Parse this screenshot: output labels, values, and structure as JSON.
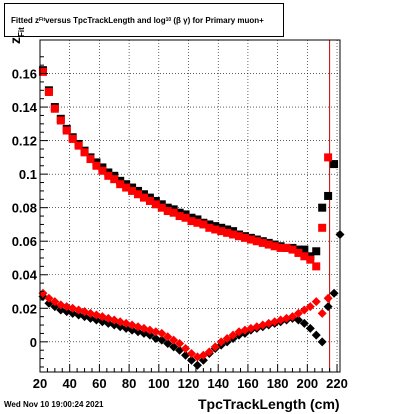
{
  "title": {
    "prefix": "Fitted z",
    "sub1": "Fit",
    "mid": " versus TpcTrackLength and log",
    "sub2": "10",
    "suffix": "(β γ) for Primary muon+"
  },
  "footer_text": "Wed Nov 10 19:00:24 2021",
  "chart_data": {
    "type": "scatter",
    "xlabel": "TpcTrackLength (cm)",
    "ylabel_main": "z",
    "ylabel_sub": "Fit",
    "xlim": [
      20,
      222
    ],
    "ylim": [
      -0.018,
      0.18
    ],
    "xticks": [
      20,
      40,
      60,
      80,
      100,
      120,
      140,
      160,
      180,
      200,
      220
    ],
    "yticks": [
      0,
      0.02,
      0.04,
      0.06,
      0.08,
      0.1,
      0.12,
      0.14,
      0.16
    ],
    "ytick_labels": [
      "0",
      "0.02",
      "0.04",
      "0.06",
      "0.08",
      "0.1",
      "0.12",
      "0.14",
      "0.16"
    ],
    "grid": true,
    "vertical_line_x": 215,
    "series": [
      {
        "color": "#000000",
        "marker": "square",
        "points": [
          [
            22,
            0.162
          ],
          [
            26,
            0.15
          ],
          [
            30,
            0.14
          ],
          [
            34,
            0.133
          ],
          [
            38,
            0.127
          ],
          [
            42,
            0.122
          ],
          [
            46,
            0.118
          ],
          [
            50,
            0.114
          ],
          [
            54,
            0.11
          ],
          [
            58,
            0.107
          ],
          [
            62,
            0.104
          ],
          [
            66,
            0.101
          ],
          [
            70,
            0.099
          ],
          [
            74,
            0.096
          ],
          [
            78,
            0.094
          ],
          [
            82,
            0.092
          ],
          [
            86,
            0.09
          ],
          [
            90,
            0.088
          ],
          [
            94,
            0.086
          ],
          [
            98,
            0.084
          ],
          [
            102,
            0.082
          ],
          [
            106,
            0.08
          ],
          [
            110,
            0.079
          ],
          [
            114,
            0.077
          ],
          [
            118,
            0.076
          ],
          [
            122,
            0.074
          ],
          [
            126,
            0.073
          ],
          [
            130,
            0.071
          ],
          [
            134,
            0.07
          ],
          [
            138,
            0.069
          ],
          [
            142,
            0.068
          ],
          [
            146,
            0.067
          ],
          [
            150,
            0.066
          ],
          [
            154,
            0.064
          ],
          [
            158,
            0.063
          ],
          [
            162,
            0.062
          ],
          [
            166,
            0.061
          ],
          [
            170,
            0.06
          ],
          [
            174,
            0.059
          ],
          [
            178,
            0.058
          ],
          [
            182,
            0.057
          ],
          [
            186,
            0.056
          ],
          [
            190,
            0.056
          ],
          [
            194,
            0.055
          ],
          [
            198,
            0.055
          ],
          [
            202,
            0.051
          ],
          [
            206,
            0.054
          ],
          [
            210,
            0.08
          ],
          [
            214,
            0.087
          ],
          [
            218,
            0.106
          ]
        ]
      },
      {
        "color": "#ff0000",
        "marker": "square",
        "points": [
          [
            22,
            0.161
          ],
          [
            26,
            0.149
          ],
          [
            30,
            0.139
          ],
          [
            34,
            0.132
          ],
          [
            38,
            0.126
          ],
          [
            42,
            0.121
          ],
          [
            46,
            0.117
          ],
          [
            50,
            0.113
          ],
          [
            54,
            0.109
          ],
          [
            58,
            0.105
          ],
          [
            62,
            0.102
          ],
          [
            66,
            0.099
          ],
          [
            70,
            0.097
          ],
          [
            74,
            0.094
          ],
          [
            78,
            0.092
          ],
          [
            82,
            0.09
          ],
          [
            86,
            0.088
          ],
          [
            90,
            0.086
          ],
          [
            94,
            0.084
          ],
          [
            98,
            0.082
          ],
          [
            102,
            0.08
          ],
          [
            106,
            0.078
          ],
          [
            110,
            0.077
          ],
          [
            114,
            0.075
          ],
          [
            118,
            0.074
          ],
          [
            122,
            0.072
          ],
          [
            126,
            0.071
          ],
          [
            130,
            0.07
          ],
          [
            134,
            0.068
          ],
          [
            138,
            0.067
          ],
          [
            142,
            0.066
          ],
          [
            146,
            0.065
          ],
          [
            150,
            0.064
          ],
          [
            154,
            0.063
          ],
          [
            158,
            0.062
          ],
          [
            162,
            0.061
          ],
          [
            166,
            0.06
          ],
          [
            170,
            0.059
          ],
          [
            174,
            0.058
          ],
          [
            178,
            0.057
          ],
          [
            182,
            0.056
          ],
          [
            186,
            0.056
          ],
          [
            190,
            0.055
          ],
          [
            194,
            0.053
          ],
          [
            198,
            0.051
          ],
          [
            202,
            0.049
          ],
          [
            206,
            0.045
          ],
          [
            210,
            0.068
          ],
          [
            214,
            0.11
          ]
        ]
      },
      {
        "color": "#000000",
        "marker": "diamond",
        "points": [
          [
            22,
            0.027
          ],
          [
            26,
            0.023
          ],
          [
            30,
            0.021
          ],
          [
            34,
            0.019
          ],
          [
            38,
            0.018
          ],
          [
            42,
            0.017
          ],
          [
            46,
            0.016
          ],
          [
            50,
            0.015
          ],
          [
            54,
            0.014
          ],
          [
            58,
            0.013
          ],
          [
            62,
            0.012
          ],
          [
            66,
            0.011
          ],
          [
            70,
            0.01
          ],
          [
            74,
            0.009
          ],
          [
            78,
            0.008
          ],
          [
            82,
            0.007
          ],
          [
            86,
            0.006
          ],
          [
            90,
            0.005
          ],
          [
            94,
            0.004
          ],
          [
            98,
            0.002
          ],
          [
            102,
            0.001
          ],
          [
            106,
            -0.001
          ],
          [
            110,
            -0.003
          ],
          [
            114,
            -0.005
          ],
          [
            118,
            -0.008
          ],
          [
            122,
            -0.011
          ],
          [
            126,
            -0.014
          ],
          [
            130,
            -0.011
          ],
          [
            134,
            -0.007
          ],
          [
            138,
            -0.004
          ],
          [
            142,
            -0.002
          ],
          [
            146,
            0.0
          ],
          [
            150,
            0.002
          ],
          [
            154,
            0.004
          ],
          [
            158,
            0.005
          ],
          [
            162,
            0.007
          ],
          [
            166,
            0.008
          ],
          [
            170,
            0.009
          ],
          [
            174,
            0.01
          ],
          [
            178,
            0.011
          ],
          [
            182,
            0.012
          ],
          [
            186,
            0.013
          ],
          [
            190,
            0.014
          ],
          [
            194,
            0.013
          ],
          [
            198,
            0.011
          ],
          [
            202,
            0.008
          ],
          [
            206,
            0.004
          ],
          [
            210,
            0.0
          ],
          [
            214,
            0.021
          ],
          [
            218,
            0.029
          ],
          [
            222,
            0.064
          ]
        ]
      },
      {
        "color": "#ff0000",
        "marker": "diamond",
        "points": [
          [
            22,
            0.029
          ],
          [
            26,
            0.026
          ],
          [
            30,
            0.024
          ],
          [
            34,
            0.022
          ],
          [
            38,
            0.021
          ],
          [
            42,
            0.02
          ],
          [
            46,
            0.019
          ],
          [
            50,
            0.018
          ],
          [
            54,
            0.017
          ],
          [
            58,
            0.016
          ],
          [
            62,
            0.015
          ],
          [
            66,
            0.014
          ],
          [
            70,
            0.013
          ],
          [
            74,
            0.012
          ],
          [
            78,
            0.011
          ],
          [
            82,
            0.01
          ],
          [
            86,
            0.009
          ],
          [
            90,
            0.008
          ],
          [
            94,
            0.007
          ],
          [
            98,
            0.006
          ],
          [
            102,
            0.005
          ],
          [
            106,
            0.003
          ],
          [
            110,
            0.001
          ],
          [
            114,
            -0.001
          ],
          [
            118,
            -0.004
          ],
          [
            122,
            -0.007
          ],
          [
            126,
            -0.009
          ],
          [
            130,
            -0.008
          ],
          [
            134,
            -0.006
          ],
          [
            138,
            -0.003
          ],
          [
            142,
            0.0
          ],
          [
            146,
            0.002
          ],
          [
            150,
            0.004
          ],
          [
            154,
            0.006
          ],
          [
            158,
            0.007
          ],
          [
            162,
            0.008
          ],
          [
            166,
            0.009
          ],
          [
            170,
            0.01
          ],
          [
            174,
            0.011
          ],
          [
            178,
            0.012
          ],
          [
            182,
            0.013
          ],
          [
            186,
            0.014
          ],
          [
            190,
            0.015
          ],
          [
            194,
            0.017
          ],
          [
            198,
            0.019
          ],
          [
            202,
            0.021
          ],
          [
            206,
            0.024
          ],
          [
            210,
            0.017
          ],
          [
            214,
            0.026
          ]
        ]
      }
    ]
  }
}
